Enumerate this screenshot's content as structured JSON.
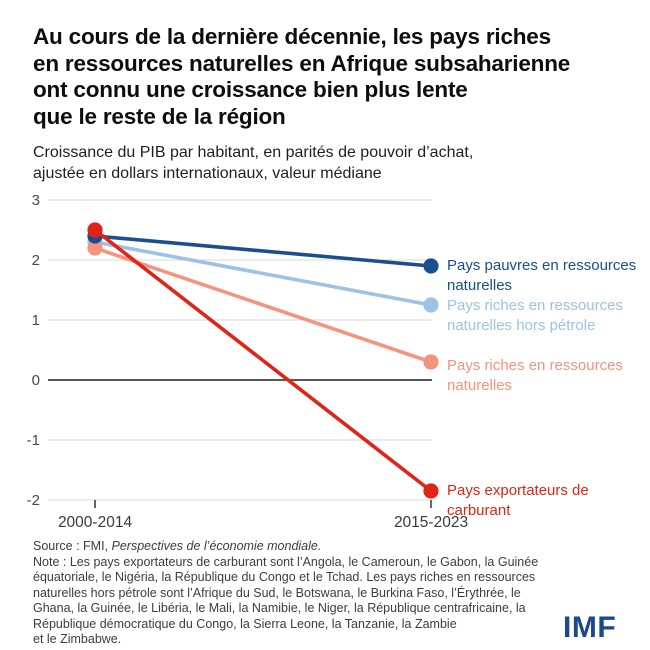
{
  "page": {
    "title": "Au cours de la dernière décennie, les pays riches\nen ressources naturelles en Afrique subsaharienne\nont connu une croissance bien plus lente\nque le reste de la région",
    "subtitle": "Croissance du PIB par habitant, en parités de pouvoir d’achat,\najustée en dollars internationaux, valeur médiane"
  },
  "chart_data": {
    "type": "line",
    "title": "Au cours de la dernière décennie, les pays riches en ressources naturelles en Afrique subsaharienne ont connu une croissance bien plus lente que le reste de la région",
    "subtitle": "Croissance du PIB par habitant, en parités de pouvoir d’achat, ajustée en dollars internationaux, valeur médiane",
    "categories": [
      "2000-2014",
      "2015-2023"
    ],
    "series": [
      {
        "name": "Pays pauvres en ressources naturelles",
        "color": "#1A4E8F",
        "values": [
          2.4,
          1.9
        ]
      },
      {
        "name": "Pays riches en ressources naturelles hors pétrole",
        "color": "#9CC2E5",
        "values": [
          2.3,
          1.25
        ]
      },
      {
        "name": "Pays riches en ressources naturelles",
        "color": "#F4947E",
        "values": [
          2.2,
          0.3
        ]
      },
      {
        "name": "Pays exportateurs de carburant",
        "color": "#E02417",
        "values": [
          2.5,
          -1.85
        ]
      }
    ],
    "yticks": [
      3,
      2,
      1,
      0,
      -1,
      -2
    ],
    "ylim": [
      -2,
      3
    ],
    "xlabel": "",
    "ylabel": "",
    "grid": "horizontal",
    "zero_line": true,
    "legend_position": "right-of-endpoints",
    "draw_order": [
      1,
      2,
      0,
      3
    ],
    "colors": {
      "gridline": "#d9d9d9",
      "zero_line": "#3f3f3f",
      "tick_label": "#4a4a4a",
      "x_label": "#3a3a3a"
    }
  },
  "footer": {
    "source_prefix": "Source : FMI, ",
    "source_italic": "Perspectives de l’économie mondiale.",
    "note": "Note : Les pays exportateurs de carburant sont l’Angola, le Cameroun, le Gabon, la Guinée\néquatoriale, le Nigéria, la République du Congo et le Tchad. Les pays riches en ressources\nnaturelles hors pétrole sont l’Afrique du Sud, le Botswana, le Burkina Faso, l’Érythrée, le\nGhana, la Guinée, le Libéria, le Mali, la Namibie, le Niger, la République centrafricaine, la\nRépublique démocratique du Congo, la Sierra Leone, la Tanzanie, la Zambie\net le Zimbabwe."
  },
  "branding": {
    "logo_text": "IMF",
    "logo_color": "#1A4A8D"
  }
}
